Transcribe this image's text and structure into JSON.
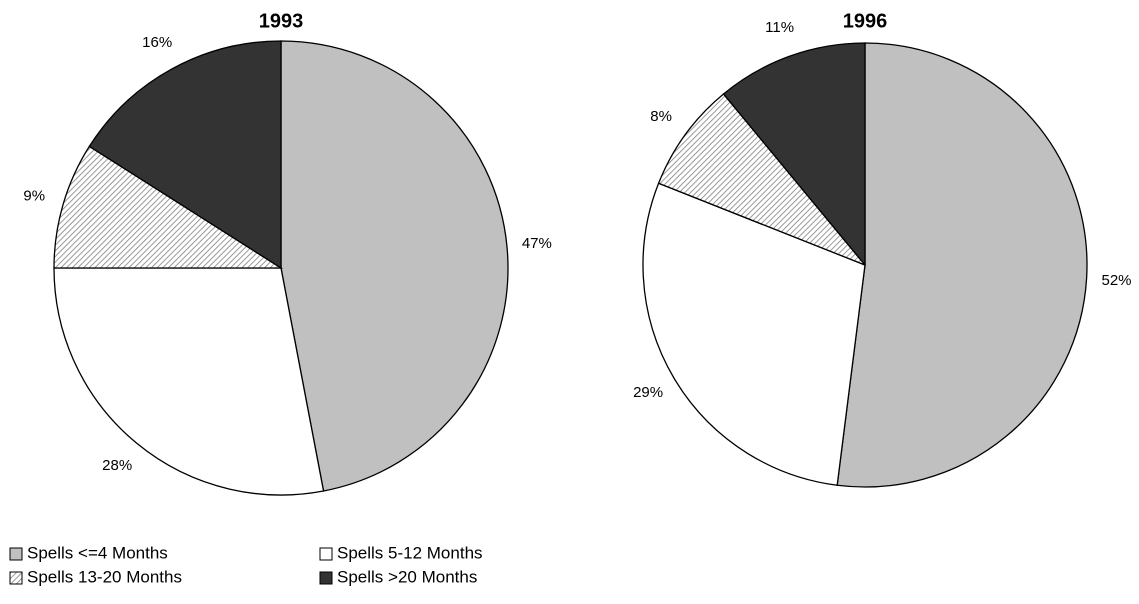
{
  "legend": {
    "labels": [
      "Spells <=4 Months",
      "Spells 5-12 Months",
      "Spells 13-20 Months",
      "Spells >20 Months"
    ],
    "colors": [
      "#c0c0c0",
      "#ffffff",
      "#808080",
      "#333333"
    ],
    "hatch": [
      false,
      false,
      true,
      false
    ]
  },
  "chart_data": [
    {
      "type": "pie",
      "title": "1993",
      "values": [
        47,
        28,
        9,
        16
      ],
      "value_labels": [
        "47%",
        "28%",
        "9%",
        "16%"
      ]
    },
    {
      "type": "pie",
      "title": "1996",
      "values": [
        52,
        29,
        8,
        11
      ],
      "value_labels": [
        "52%",
        "29%",
        "8%",
        "11%"
      ]
    }
  ]
}
